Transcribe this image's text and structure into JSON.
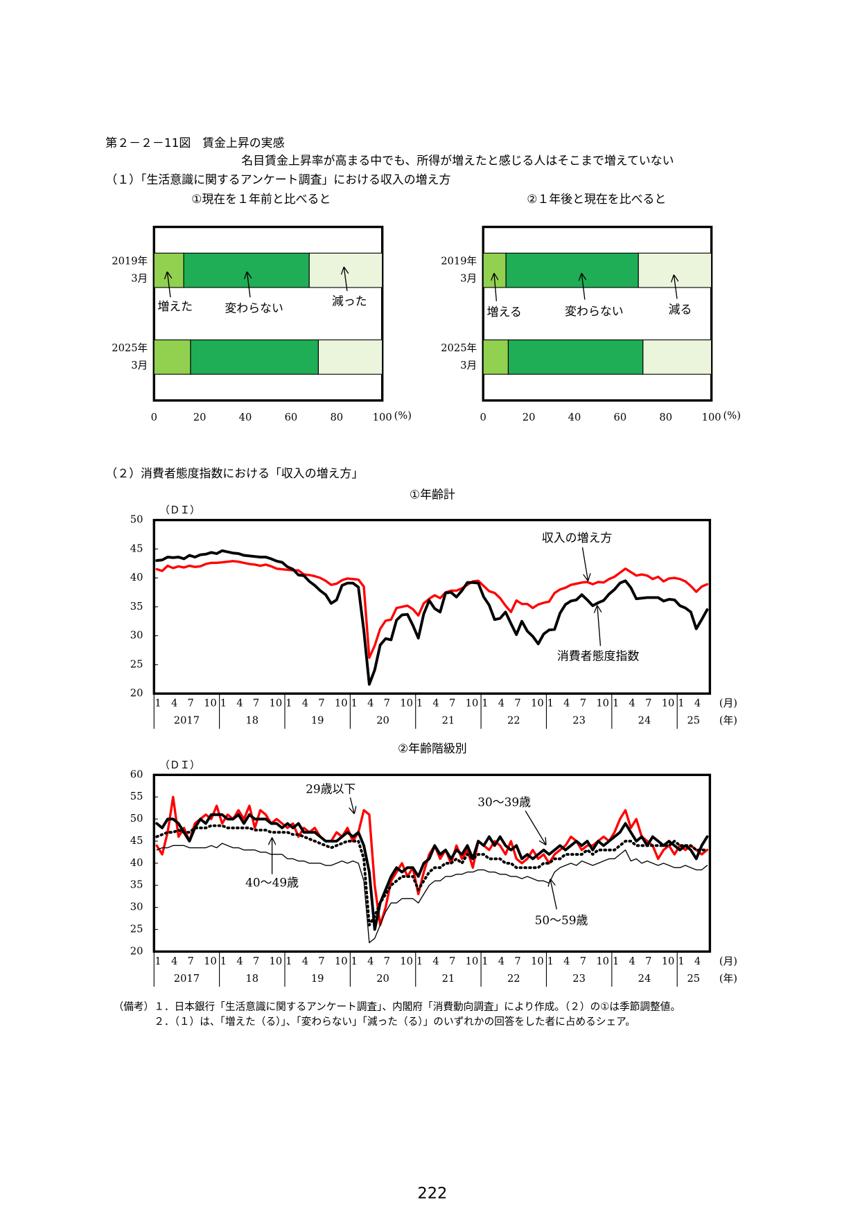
{
  "header": {
    "figure": "第２－２－11図　賃金上昇の実感",
    "subtitle": "名目賃金上昇率が高まる中でも、所得が増えたと感じる人はそこまで増えていない",
    "section1": "（１）「生活意識に関するアンケート調査」における収入の増え方",
    "section2": "（２）消費者態度指数における「収入の増え方」"
  },
  "chart_data": [
    {
      "type": "bar",
      "orientation": "horizontal",
      "stacked": true,
      "title": "①現在を１年前と比べると",
      "categories": [
        [
          "2019年",
          "3月"
        ],
        [
          "2025年",
          "3月"
        ]
      ],
      "series": [
        {
          "name": "増えた",
          "color": "#92d050",
          "values": [
            13,
            16
          ]
        },
        {
          "name": "変わらない",
          "color": "#1fae55",
          "values": [
            55,
            56
          ]
        },
        {
          "name": "減った",
          "color": "#eaf5dc",
          "values": [
            32,
            28
          ]
        }
      ],
      "xlim": [
        0,
        100
      ],
      "xticks": [
        0,
        20,
        40,
        60,
        80,
        100
      ],
      "x_unit": "(%)"
    },
    {
      "type": "bar",
      "orientation": "horizontal",
      "stacked": true,
      "title": "②１年後と現在を比べると",
      "categories": [
        [
          "2019年",
          "3月"
        ],
        [
          "2025年",
          "3月"
        ]
      ],
      "series": [
        {
          "name": "増える",
          "color": "#92d050",
          "values": [
            10,
            11
          ]
        },
        {
          "name": "変わらない",
          "color": "#1fae55",
          "values": [
            58,
            59
          ]
        },
        {
          "name": "減る",
          "color": "#eaf5dc",
          "values": [
            32,
            30
          ]
        }
      ],
      "xlim": [
        0,
        100
      ],
      "xticks": [
        0,
        20,
        40,
        60,
        80,
        100
      ],
      "x_unit": "(%)"
    },
    {
      "type": "line",
      "title": "①年齢計",
      "y_label": "（ＤＩ）",
      "ylim": [
        20,
        50
      ],
      "yticks": [
        20,
        25,
        30,
        35,
        40,
        45,
        50
      ],
      "categories": [
        "1",
        null,
        null,
        "4",
        null,
        null,
        "7",
        null,
        null,
        "10",
        null,
        null,
        "1",
        null,
        null,
        "4",
        null,
        null,
        "7",
        null,
        null,
        "10",
        null,
        null,
        "1",
        null,
        null,
        "4",
        null,
        null,
        "7",
        null,
        null,
        "10",
        null,
        null,
        "1",
        null,
        null,
        "4",
        null,
        null,
        "7",
        null,
        null,
        "10",
        null,
        null,
        "1",
        null,
        null,
        "4",
        null,
        null,
        "7",
        null,
        null,
        "10",
        null,
        null,
        "1",
        null,
        null,
        "4",
        null,
        null,
        "7",
        null,
        null,
        "10",
        null,
        null,
        "1",
        null,
        null,
        "4",
        null,
        null,
        "7",
        null,
        null,
        "10",
        null,
        null,
        "1",
        null,
        null,
        "4",
        null,
        null,
        "7",
        null,
        null,
        "10",
        null,
        null,
        "1",
        null,
        null,
        "4",
        null,
        null
      ],
      "years": [
        "2017",
        "18",
        "19",
        "20",
        "21",
        "22",
        "23",
        "24",
        "25"
      ],
      "x_unit": "(月)",
      "year_unit": "(年)",
      "series": [
        {
          "name": "収入の増え方",
          "color": "#ff0000",
          "line_width": 3,
          "values": [
            41.5,
            41.2,
            42.1,
            41.7,
            42.0,
            41.8,
            42.1,
            41.9,
            42.0,
            42.4,
            42.6,
            42.6,
            42.7,
            42.8,
            42.9,
            42.8,
            42.6,
            42.4,
            42.3,
            42.1,
            42.3,
            42.0,
            41.6,
            41.5,
            41.4,
            41.3,
            41.3,
            40.6,
            40.5,
            40.3,
            40.0,
            39.5,
            38.8,
            39.0,
            39.6,
            39.9,
            39.8,
            39.7,
            38.5,
            26.2,
            28.3,
            31.2,
            32.6,
            32.8,
            34.8,
            35.0,
            35.2,
            34.6,
            33.5,
            35.6,
            36.4,
            37.0,
            36.5,
            37.5,
            37.8,
            37.8,
            38.2,
            38.8,
            39.4,
            39.5,
            38.6,
            37.7,
            37.4,
            36.5,
            35.2,
            34.1,
            36.1,
            35.5,
            35.5,
            34.8,
            35.4,
            35.7,
            35.9,
            37.4,
            38.0,
            38.3,
            38.8,
            39.0,
            39.2,
            39.3,
            38.9,
            39.3,
            39.2,
            39.8,
            40.2,
            40.9,
            41.6,
            41.0,
            40.4,
            40.6,
            40.4,
            39.8,
            40.2,
            39.4,
            39.9,
            40.0,
            39.8,
            39.4,
            38.6,
            37.6,
            38.5,
            38.9
          ]
        },
        {
          "name": "消費者態度指数",
          "color": "#000000",
          "line_width": 3.5,
          "values": [
            43.0,
            43.1,
            43.6,
            43.5,
            43.6,
            43.3,
            43.9,
            43.6,
            44.0,
            44.1,
            44.4,
            44.2,
            44.7,
            44.5,
            44.3,
            44.2,
            43.9,
            43.8,
            43.7,
            43.6,
            43.6,
            43.3,
            42.9,
            42.7,
            41.9,
            41.5,
            40.5,
            40.4,
            39.4,
            38.7,
            37.8,
            37.1,
            35.6,
            36.2,
            38.7,
            39.1,
            39.1,
            38.4,
            30.9,
            21.6,
            24.1,
            28.4,
            29.5,
            29.3,
            32.7,
            33.6,
            33.7,
            31.8,
            29.6,
            33.8,
            36.1,
            34.7,
            34.1,
            37.4,
            37.5,
            36.7,
            37.8,
            39.2,
            39.2,
            39.1,
            36.7,
            35.3,
            32.8,
            33.0,
            34.1,
            32.1,
            30.2,
            32.5,
            30.8,
            29.9,
            28.6,
            30.3,
            31.0,
            31.1,
            33.9,
            35.4,
            36.0,
            36.2,
            37.1,
            36.2,
            35.2,
            35.7,
            36.1,
            37.2,
            38.0,
            39.1,
            39.5,
            38.3,
            36.4,
            36.5,
            36.6,
            36.6,
            36.6,
            36.0,
            36.3,
            36.2,
            35.2,
            34.8,
            34.1,
            31.2,
            32.8,
            34.5
          ]
        }
      ]
    },
    {
      "type": "line",
      "title": "②年齢階級別",
      "y_label": "（ＤＩ）",
      "ylim": [
        20,
        60
      ],
      "yticks": [
        20,
        25,
        30,
        35,
        40,
        45,
        50,
        55,
        60
      ],
      "categories": [
        "1",
        null,
        null,
        "4",
        null,
        null,
        "7",
        null,
        null,
        "10",
        null,
        null,
        "1",
        null,
        null,
        "4",
        null,
        null,
        "7",
        null,
        null,
        "10",
        null,
        null,
        "1",
        null,
        null,
        "4",
        null,
        null,
        "7",
        null,
        null,
        "10",
        null,
        null,
        "1",
        null,
        null,
        "4",
        null,
        null,
        "7",
        null,
        null,
        "10",
        null,
        null,
        "1",
        null,
        null,
        "4",
        null,
        null,
        "7",
        null,
        null,
        "10",
        null,
        null,
        "1",
        null,
        null,
        "4",
        null,
        null,
        "7",
        null,
        null,
        "10",
        null,
        null,
        "1",
        null,
        null,
        "4",
        null,
        null,
        "7",
        null,
        null,
        "10",
        null,
        null,
        "1",
        null,
        null,
        "4",
        null,
        null,
        "7",
        null,
        null,
        "10",
        null,
        null,
        "1",
        null,
        null,
        "4",
        null,
        null
      ],
      "years": [
        "2017",
        "18",
        "19",
        "20",
        "21",
        "22",
        "23",
        "24",
        "25"
      ],
      "x_unit": "(月)",
      "year_unit": "(年)",
      "series": [
        {
          "name": "29歳以下",
          "color": "#ff0000",
          "line_width": 3,
          "values": [
            44,
            42,
            47,
            55,
            46,
            48,
            45,
            49,
            50,
            51,
            50,
            53,
            49,
            51,
            50,
            52,
            50,
            53,
            48,
            52,
            51,
            49,
            50,
            49,
            48,
            49,
            46,
            48,
            47,
            48,
            46,
            45,
            45,
            47,
            46,
            48,
            45,
            47,
            52,
            51,
            35,
            26,
            30,
            36,
            38,
            40,
            37,
            39,
            33,
            38,
            42,
            44,
            41,
            43,
            40,
            44,
            41,
            43,
            39,
            45,
            44,
            43,
            45,
            44,
            42,
            45,
            41,
            40,
            41,
            43,
            41,
            42,
            40,
            42,
            43,
            44,
            46,
            45,
            43,
            44,
            44,
            45,
            46,
            45,
            47,
            50,
            52,
            48,
            50,
            46,
            45,
            44,
            41,
            43,
            44,
            42,
            44,
            43,
            44,
            43,
            42,
            43
          ]
        },
        {
          "name": "30〜39歳",
          "color": "#000000",
          "line_width": 3.5,
          "values": [
            49,
            48,
            50,
            50,
            49,
            47,
            45,
            48,
            50,
            49,
            51,
            51,
            51,
            50,
            50,
            51,
            49,
            51,
            50,
            50,
            50,
            49,
            49,
            48,
            49,
            48,
            49,
            47,
            47,
            47,
            46,
            45,
            45,
            45,
            46,
            47,
            46,
            47,
            44,
            38,
            25,
            31,
            34,
            37,
            39,
            38,
            39,
            39,
            37,
            40,
            41,
            44,
            42,
            43,
            41,
            43,
            42,
            44,
            41,
            45,
            44,
            46,
            44,
            46,
            44,
            43,
            44,
            41,
            42,
            41,
            42,
            43,
            42,
            43,
            44,
            43,
            44,
            45,
            44,
            45,
            43,
            45,
            44,
            45,
            46,
            47,
            49,
            47,
            45,
            46,
            44,
            46,
            45,
            44,
            45,
            44,
            43,
            44,
            43,
            41,
            44,
            46
          ]
        },
        {
          "name": "40〜49歳",
          "color": "#000000",
          "line_width": 3.5,
          "dash": "1.5 4.5",
          "values": [
            46,
            46.5,
            47,
            47,
            47.5,
            47,
            47,
            48,
            48,
            48,
            48.5,
            48.5,
            48.5,
            48,
            48,
            48,
            48,
            48,
            47.5,
            47.5,
            47.5,
            47,
            47,
            47,
            47,
            46.5,
            46.5,
            46,
            45.5,
            45,
            44.5,
            44,
            43.5,
            44,
            44.5,
            45,
            45,
            45,
            41,
            26,
            28,
            31,
            33,
            35,
            36,
            37,
            37,
            37,
            34,
            36,
            38,
            39,
            39,
            40,
            40,
            41,
            40,
            42,
            41,
            42,
            42,
            41,
            41,
            41,
            40,
            40,
            39,
            39,
            39,
            39,
            39,
            40,
            40,
            41,
            41,
            42,
            42,
            42,
            42,
            43,
            42,
            43,
            43,
            43,
            43,
            44,
            45,
            45,
            44,
            44,
            44,
            44,
            44,
            44,
            44,
            45,
            44,
            44,
            44,
            43,
            43,
            43
          ]
        },
        {
          "name": "50〜59歳",
          "color": "#000000",
          "line_width": 1.2,
          "values": [
            43,
            43.5,
            43.5,
            44,
            44,
            44,
            43.5,
            43.5,
            43.5,
            43.5,
            44,
            43.5,
            44.5,
            44,
            43.5,
            43.5,
            43,
            43,
            43,
            42.5,
            42.5,
            42,
            42,
            42,
            41,
            41,
            40.5,
            40.5,
            40,
            40,
            40,
            39.5,
            39.5,
            40,
            40.5,
            40,
            40.5,
            40,
            36,
            22,
            23,
            26,
            29,
            31,
            31,
            32,
            32,
            32,
            31,
            33,
            35,
            36,
            36,
            37,
            37,
            37.5,
            37.5,
            38,
            38,
            38.5,
            38.5,
            38,
            38,
            37.5,
            37.5,
            37,
            37,
            36.5,
            37,
            36.5,
            36,
            36,
            35.5,
            38,
            39,
            39.5,
            40,
            39.5,
            40.5,
            40,
            39.5,
            40,
            40.5,
            41,
            41,
            42,
            43,
            40.5,
            41,
            40,
            40.5,
            40,
            39.5,
            40,
            39.5,
            39,
            39,
            39.5,
            39,
            38.5,
            38.5,
            39.5
          ]
        }
      ]
    }
  ],
  "notes": {
    "label": "（備考）",
    "items": [
      "１．日本銀行「生活意識に関するアンケート調査」、内閣府「消費動向調査」により作成。（２）の①は季節調整値。",
      "２．（１）は、「増えた（る）」、「変わらない」「減った（る）」のいずれかの回答をした者に占めるシェア。"
    ]
  },
  "page_number": "222"
}
